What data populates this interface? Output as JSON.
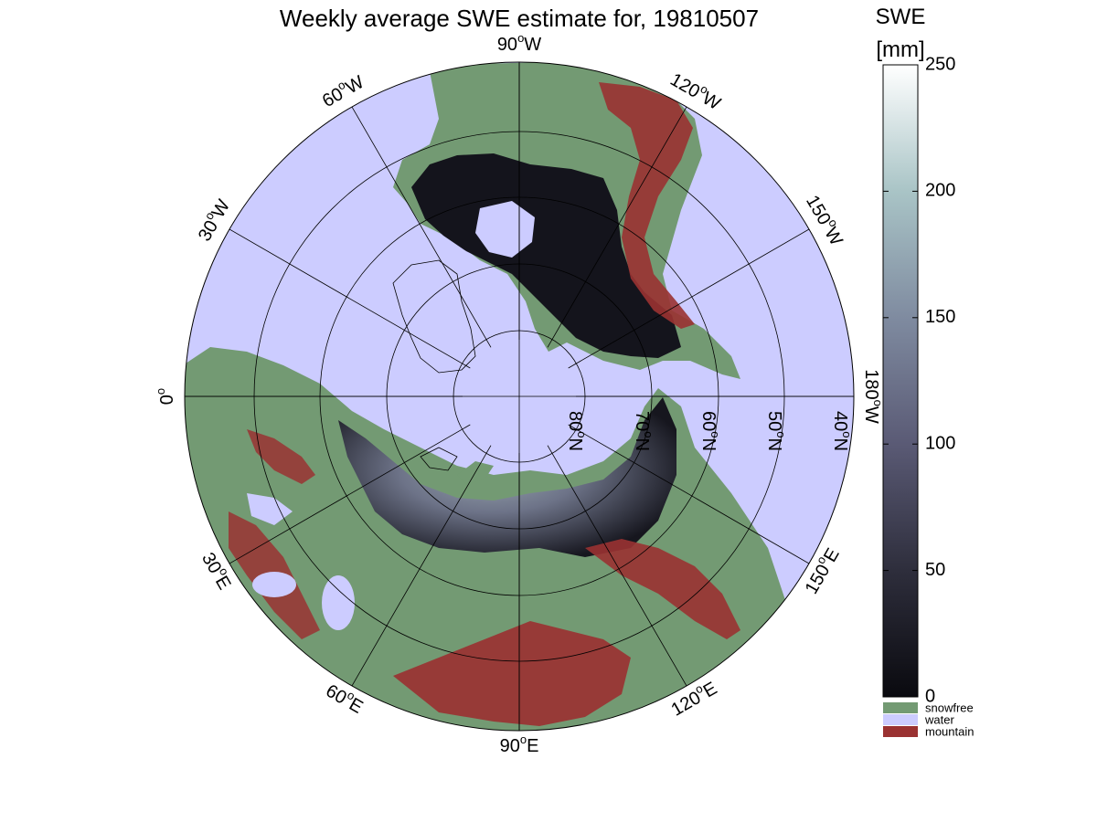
{
  "title": "Weekly average SWE estimate for, 19810507",
  "map": {
    "projection": "north polar stereographic",
    "longitude_labels": [
      {
        "lon": "90",
        "hemi": "W",
        "bearing": 0
      },
      {
        "lon": "120",
        "hemi": "W",
        "bearing": 30
      },
      {
        "lon": "150",
        "hemi": "W",
        "bearing": 60
      },
      {
        "lon": "180",
        "hemi": "W",
        "bearing": 90
      },
      {
        "lon": "150",
        "hemi": "E",
        "bearing": 120
      },
      {
        "lon": "120",
        "hemi": "E",
        "bearing": 150
      },
      {
        "lon": "90",
        "hemi": "E",
        "bearing": 180
      },
      {
        "lon": "60",
        "hemi": "E",
        "bearing": 210
      },
      {
        "lon": "30",
        "hemi": "E",
        "bearing": 240
      },
      {
        "lon": "0",
        "hemi": "",
        "bearing": 270
      },
      {
        "lon": "30",
        "hemi": "W",
        "bearing": 300
      },
      {
        "lon": "60",
        "hemi": "W",
        "bearing": 330
      }
    ],
    "latitude_labels": [
      {
        "lat": "80",
        "hemi": "N"
      },
      {
        "lat": "70",
        "hemi": "N"
      },
      {
        "lat": "60",
        "hemi": "N"
      },
      {
        "lat": "50",
        "hemi": "N"
      },
      {
        "lat": "40",
        "hemi": "N"
      }
    ],
    "degree_symbol": "o"
  },
  "colorbar": {
    "title_line1": "SWE",
    "title_line2": "[mm]",
    "min": 0,
    "max": 250,
    "ticks": [
      "0",
      "50",
      "100",
      "150",
      "200",
      "250"
    ],
    "gradient": [
      "#0a0a0f",
      "#2e2e3c",
      "#5a5a75",
      "#7f8ba0",
      "#a9c4c6",
      "#ffffff"
    ],
    "categories": [
      {
        "label": "snowfree",
        "color": "#739a73"
      },
      {
        "label": "water",
        "color": "#ccccff"
      },
      {
        "label": "mountain",
        "color": "#9a3232"
      }
    ]
  },
  "colors": {
    "water": "#ccccff",
    "land": "#739a73",
    "mountain": "#9a3232",
    "snow_shallow": "#14141c",
    "snow_deep": "#9aa8b0"
  }
}
